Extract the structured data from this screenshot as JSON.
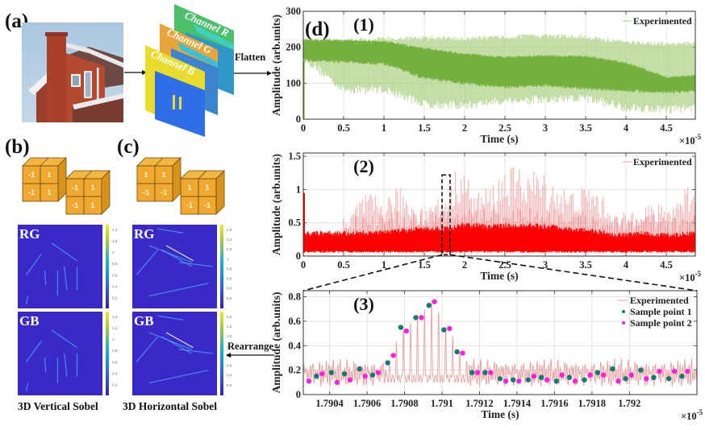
{
  "figure": {
    "panel_labels": {
      "a": "(a)",
      "b": "(b)",
      "c": "(c)",
      "d": "(d)"
    },
    "channels": [
      {
        "name": "Channel R",
        "color": "#4cbf6a"
      },
      {
        "name": "Channel G",
        "color": "#e8a53a"
      },
      {
        "name": "Channel B",
        "color": "#e9dc2f"
      }
    ],
    "arrows": {
      "flatten": "Flatten",
      "rearrange": "Rearrange"
    },
    "kernels": {
      "vertical": {
        "front_cube": [
          "-1",
          "1",
          "-1",
          "1"
        ],
        "back_cube": [
          "-1",
          "1",
          "-1",
          "1"
        ]
      },
      "horizontal": {
        "front_cube": [
          "1",
          "1",
          "-1",
          "-1"
        ],
        "back_cube": [
          "1",
          "1",
          "-1",
          "-1"
        ]
      }
    },
    "sobel_maps": {
      "vertical": {
        "caption": "3D Vertical Sobel",
        "maps": [
          {
            "label": "RG"
          },
          {
            "label": "GB"
          }
        ],
        "colorbar_ticks": [
          "1.4",
          "1.2",
          "1",
          "0.8",
          "0.6",
          "0.4",
          "0.2"
        ]
      },
      "horizontal": {
        "caption": "3D Horizontal Sobel",
        "maps": [
          {
            "label": "RG"
          },
          {
            "label": "GB"
          }
        ],
        "colorbar_ticks": [
          "1.6",
          "1.4",
          "1.2",
          "1",
          "0.8",
          "0.6",
          "0.4",
          "0.2"
        ]
      }
    },
    "colors": {
      "green_signal": "#6aaa2e",
      "red_signal": "#ff0000",
      "trace_pink": "#e8a0a0",
      "sample1": "#127a6e",
      "sample2": "#ff22dd",
      "map_bg": "#3a28c8",
      "cube_face": "#f0a830"
    }
  },
  "chart_data": [
    {
      "id": "d1",
      "type": "line",
      "label": "(1)",
      "title": "",
      "xlabel": "Time (s)",
      "ylabel": "Amplitude (arb.units)",
      "x_multiplier": "×10-5",
      "xlim": [
        0,
        4.86
      ],
      "ylim": [
        0,
        300
      ],
      "xticks": [
        "0",
        "0.5",
        "1",
        "1.5",
        "2",
        "2.5",
        "3",
        "3.5",
        "4",
        "4.5"
      ],
      "yticks": [
        "0",
        "100",
        "200",
        "300"
      ],
      "grid": true,
      "legend": {
        "position": "top-right",
        "entries": [
          "Experimented"
        ]
      },
      "series": [
        {
          "name": "Experimented (envelope)",
          "x": [
            0,
            0.5,
            1.0,
            1.5,
            2.0,
            2.5,
            3.0,
            3.5,
            4.0,
            4.5,
            4.86
          ],
          "upper": [
            225,
            225,
            230,
            232,
            230,
            235,
            238,
            235,
            220,
            215,
            218
          ],
          "lower": [
            160,
            70,
            70,
            30,
            25,
            40,
            40,
            45,
            20,
            15,
            20
          ],
          "core_upper": [
            225,
            222,
            220,
            200,
            185,
            175,
            180,
            178,
            160,
            120,
            125
          ],
          "core_lower": [
            160,
            155,
            150,
            110,
            95,
            85,
            90,
            80,
            75,
            70,
            75
          ]
        }
      ]
    },
    {
      "id": "d2",
      "type": "line",
      "label": "(2)",
      "title": "",
      "xlabel": "Time (s)",
      "ylabel": "Amplitude (arb.units)",
      "x_multiplier": "×10-5",
      "xlim": [
        0,
        4.86
      ],
      "ylim": [
        0,
        1.55
      ],
      "xticks": [
        "0",
        "0.5",
        "1",
        "1.5",
        "2",
        "2.5",
        "3",
        "3.5",
        "4",
        "4.5"
      ],
      "yticks": [
        "0",
        "0.5",
        "1",
        "1.5"
      ],
      "grid": true,
      "legend": {
        "position": "top-right",
        "entries": [
          "Experimented"
        ]
      },
      "zoom_box": {
        "x": [
          1.72,
          1.82
        ],
        "y": [
          0.02,
          1.22
        ]
      },
      "series": [
        {
          "name": "Experimented (envelope)",
          "x": [
            0,
            0.5,
            0.7,
            1.0,
            1.2,
            1.5,
            1.8,
            1.95,
            2.1,
            2.3,
            2.5,
            2.8,
            3.0,
            3.3,
            3.6,
            3.9,
            4.2,
            4.5,
            4.86
          ],
          "peaks": [
            0.95,
            0.38,
            0.95,
            0.9,
            1.05,
            0.75,
            1.0,
            1.5,
            1.0,
            1.05,
            1.35,
            1.35,
            1.25,
            1.0,
            1.1,
            0.6,
            0.85,
            0.75,
            1.25
          ],
          "band_upper": [
            0.38,
            0.38,
            0.38,
            0.4,
            0.42,
            0.45,
            0.45,
            0.5,
            0.5,
            0.48,
            0.5,
            0.5,
            0.48,
            0.45,
            0.42,
            0.35,
            0.38,
            0.35,
            0.38
          ],
          "band_lower": [
            0.05,
            0.05,
            0.05,
            0.05,
            0.05,
            0.05,
            0.05,
            0.05,
            0.05,
            0.05,
            0.05,
            0.05,
            0.05,
            0.05,
            0.05,
            0.05,
            0.05,
            0.05,
            0.05
          ]
        }
      ]
    },
    {
      "id": "d3",
      "type": "scatter",
      "label": "(3)",
      "title": "",
      "xlabel": "Time (s)",
      "ylabel": "Amplitude (arb.units)",
      "x_multiplier": "×10-5",
      "xlim": [
        1.79026,
        1.79236
      ],
      "ylim": [
        0,
        0.85
      ],
      "xticks": [
        "1.7904",
        "1.7906",
        "1.7908",
        "1.791",
        "1.7912",
        "1.7914",
        "1.7916",
        "1.7918",
        "1.792"
      ],
      "xtick_values": [
        1.7904,
        1.7906,
        1.7908,
        1.791,
        1.7912,
        1.7914,
        1.7916,
        1.7918,
        1.792
      ],
      "yticks": [
        "0",
        "0.2",
        "0.4",
        "0.6",
        "0.8"
      ],
      "ytick_values": [
        0,
        0.2,
        0.4,
        0.6,
        0.8
      ],
      "grid": true,
      "legend": {
        "position": "top-right",
        "entries": [
          "Experimented",
          "Sample point 1",
          "Sample point 2"
        ]
      },
      "series": [
        {
          "name": "Sample point 1",
          "x": [
            1.79033,
            1.79041,
            1.79048,
            1.79056,
            1.79063,
            1.79071,
            1.79078,
            1.79086,
            1.79093,
            1.79101,
            1.79108,
            1.79116,
            1.79123,
            1.79131,
            1.79138,
            1.79146,
            1.79153,
            1.79161,
            1.79168,
            1.79176,
            1.79183,
            1.79191,
            1.79198,
            1.79206,
            1.79213,
            1.79221,
            1.79228
          ],
          "y": [
            0.15,
            0.18,
            0.17,
            0.21,
            0.16,
            0.26,
            0.55,
            0.63,
            0.73,
            0.53,
            0.35,
            0.18,
            0.18,
            0.13,
            0.12,
            0.12,
            0.14,
            0.11,
            0.14,
            0.12,
            0.18,
            0.21,
            0.13,
            0.2,
            0.14,
            0.13,
            0.15
          ]
        },
        {
          "name": "Sample point 2",
          "x": [
            1.79029,
            1.79036,
            1.79044,
            1.79051,
            1.79059,
            1.79066,
            1.79074,
            1.79081,
            1.79089,
            1.79096,
            1.79104,
            1.79111,
            1.79119,
            1.79126,
            1.79134,
            1.79141,
            1.79149,
            1.79156,
            1.79164,
            1.79171,
            1.79179,
            1.79186,
            1.79194,
            1.79201,
            1.79209,
            1.79216,
            1.79224,
            1.79231
          ],
          "y": [
            0.11,
            0.17,
            0.1,
            0.12,
            0.15,
            0.18,
            0.32,
            0.52,
            0.63,
            0.76,
            0.54,
            0.34,
            0.18,
            0.18,
            0.11,
            0.11,
            0.15,
            0.12,
            0.16,
            0.11,
            0.16,
            0.16,
            0.11,
            0.16,
            0.13,
            0.19,
            0.19,
            0.19
          ]
        },
        {
          "name": "Experimented",
          "type": "line",
          "note": "oscillating trace, peaks follow sample envelope"
        }
      ]
    }
  ]
}
